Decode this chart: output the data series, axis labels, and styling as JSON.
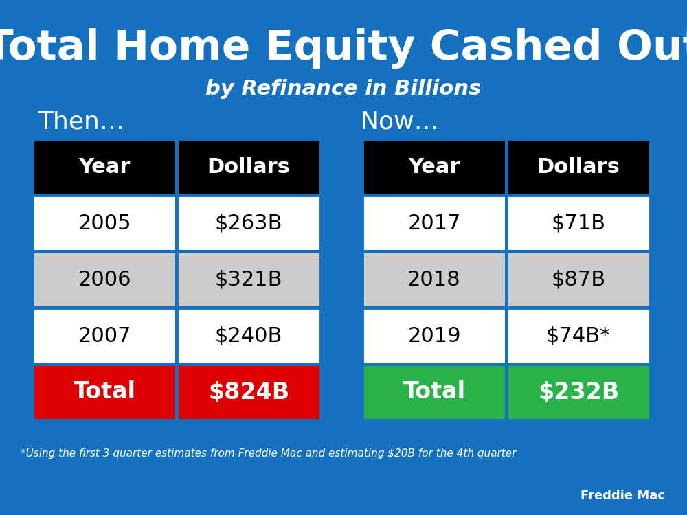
{
  "title": "Total Home Equity Cashed Out",
  "subtitle": "by Refinance in Billions",
  "bg_color": "#1570C0",
  "then_label": "Then…",
  "now_label": "Now…",
  "then_data": [
    [
      "Year",
      "Dollars"
    ],
    [
      "2005",
      "$263B"
    ],
    [
      "2006",
      "$321B"
    ],
    [
      "2007",
      "$240B"
    ],
    [
      "Total",
      "$824B"
    ]
  ],
  "now_data": [
    [
      "Year",
      "Dollars"
    ],
    [
      "2017",
      "$71B"
    ],
    [
      "2018",
      "$87B"
    ],
    [
      "2019",
      "$74B*"
    ],
    [
      "Total",
      "$232B"
    ]
  ],
  "header_bg": "#000000",
  "header_fg": "#ffffff",
  "row_colors": [
    "#ffffff",
    "#cccccc",
    "#ffffff"
  ],
  "then_total_bg": "#dd0000",
  "now_total_bg": "#29b348",
  "total_fg": "#ffffff",
  "data_fg": "#000000",
  "footnote": "*Using the first 3 quarter estimates from Freddie Mac and estimating $20B for the 4th quarter",
  "source": "Freddie Mac",
  "title_fontsize": 44,
  "subtitle_fontsize": 22,
  "label_fontsize": 26,
  "header_fontsize": 22,
  "data_fontsize": 22,
  "total_fontsize": 24,
  "footnote_fontsize": 11,
  "source_fontsize": 13
}
